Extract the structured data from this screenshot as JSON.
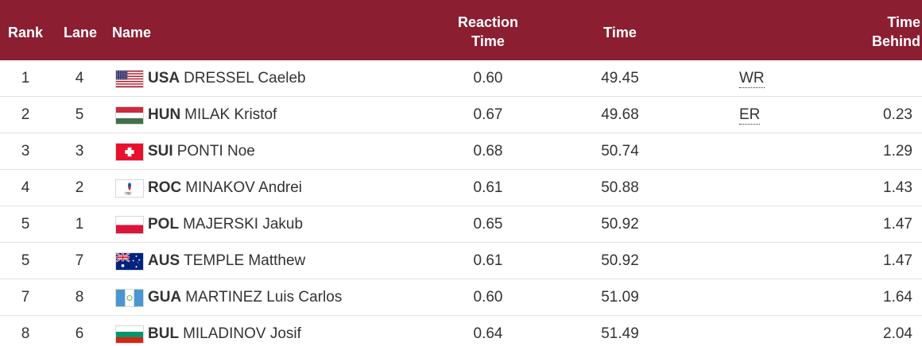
{
  "header": {
    "rank": "Rank",
    "lane": "Lane",
    "name": "Name",
    "reaction_1": "Reaction",
    "reaction_2": "Time",
    "time": "Time",
    "behind_1": "Time",
    "behind_2": "Behind"
  },
  "colors": {
    "header_bg": "#8c1e31",
    "header_text": "#ffffff",
    "row_text": "#333333"
  },
  "rows": [
    {
      "rank": "1",
      "lane": "4",
      "flag": "usa-flag-icon",
      "noc": "USA",
      "name": "DRESSEL Caeleb",
      "reaction": "0.60",
      "time": "49.45",
      "record": "WR",
      "behind": ""
    },
    {
      "rank": "2",
      "lane": "5",
      "flag": "hun-flag-icon",
      "noc": "HUN",
      "name": "MILAK Kristof",
      "reaction": "0.67",
      "time": "49.68",
      "record": "ER",
      "behind": "0.23"
    },
    {
      "rank": "3",
      "lane": "3",
      "flag": "sui-flag-icon",
      "noc": "SUI",
      "name": "PONTI Noe",
      "reaction": "0.68",
      "time": "50.74",
      "record": "",
      "behind": "1.29"
    },
    {
      "rank": "4",
      "lane": "2",
      "flag": "roc-flag-icon",
      "noc": "ROC",
      "name": "MINAKOV Andrei",
      "reaction": "0.61",
      "time": "50.88",
      "record": "",
      "behind": "1.43"
    },
    {
      "rank": "5",
      "lane": "1",
      "flag": "pol-flag-icon",
      "noc": "POL",
      "name": "MAJERSKI Jakub",
      "reaction": "0.65",
      "time": "50.92",
      "record": "",
      "behind": "1.47"
    },
    {
      "rank": "5",
      "lane": "7",
      "flag": "aus-flag-icon",
      "noc": "AUS",
      "name": "TEMPLE Matthew",
      "reaction": "0.61",
      "time": "50.92",
      "record": "",
      "behind": "1.47"
    },
    {
      "rank": "7",
      "lane": "8",
      "flag": "gua-flag-icon",
      "noc": "GUA",
      "name": "MARTINEZ Luis Carlos",
      "reaction": "0.60",
      "time": "51.09",
      "record": "",
      "behind": "1.64"
    },
    {
      "rank": "8",
      "lane": "6",
      "flag": "bul-flag-icon",
      "noc": "BUL",
      "name": "MILADINOV Josif",
      "reaction": "0.64",
      "time": "51.49",
      "record": "",
      "behind": "2.04"
    }
  ]
}
